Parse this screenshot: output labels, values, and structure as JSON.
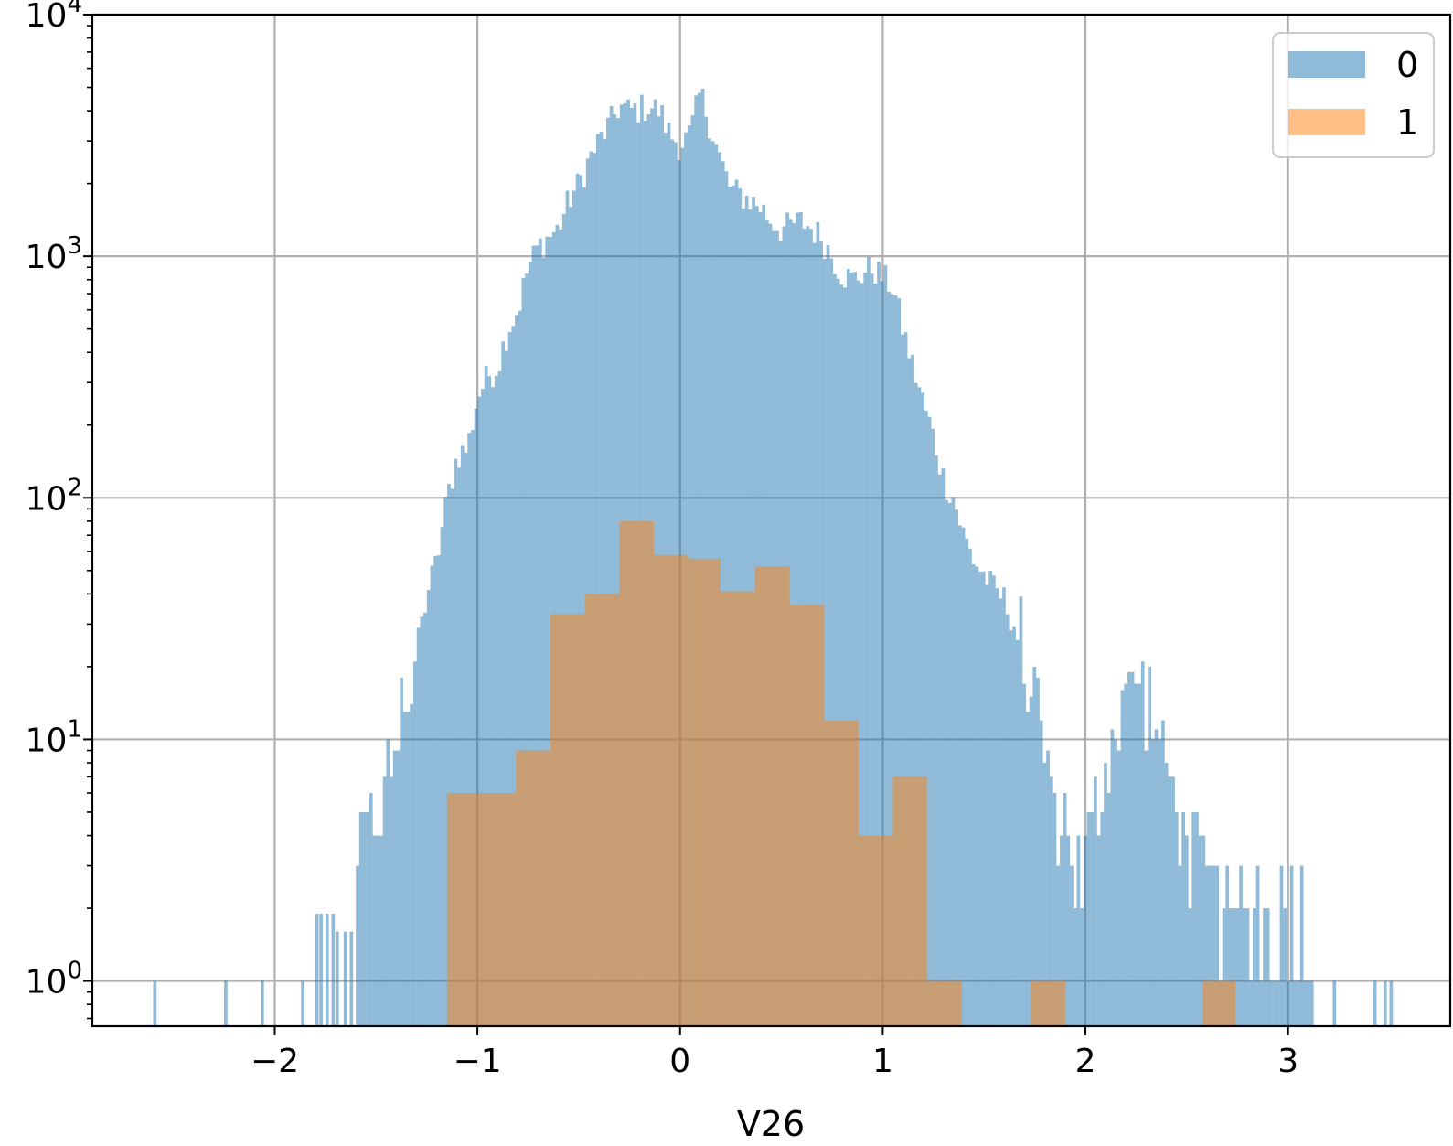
{
  "chart_data": {
    "type": "histogram",
    "xlabel": "V26",
    "ylabel": "",
    "yscale": "log",
    "xlim": [
      -2.9,
      3.8
    ],
    "ylim": [
      0.65,
      10000
    ],
    "grid": true,
    "legend_position": "top-right",
    "x_ticks": [
      {
        "value": -2,
        "label": "−2"
      },
      {
        "value": -1,
        "label": "−1"
      },
      {
        "value": 0,
        "label": "0"
      },
      {
        "value": 1,
        "label": "1"
      },
      {
        "value": 2,
        "label": "2"
      },
      {
        "value": 3,
        "label": "3"
      }
    ],
    "y_ticks": [
      {
        "value": 1,
        "base": "10",
        "exp": "0"
      },
      {
        "value": 10,
        "base": "10",
        "exp": "1"
      },
      {
        "value": 100,
        "base": "10",
        "exp": "2"
      },
      {
        "value": 1000,
        "base": "10",
        "exp": "3"
      },
      {
        "value": 10000,
        "base": "10",
        "exp": "4"
      }
    ],
    "series": [
      {
        "name": "0",
        "color": "#1f77b4",
        "alpha": 0.5,
        "bin_start": -2.6,
        "bin_width": 0.0167,
        "profile": [
          [
            -2.6,
            1
          ],
          [
            -2.25,
            1
          ],
          [
            -2.07,
            1
          ],
          [
            -1.87,
            1
          ],
          [
            -1.8,
            1.5
          ],
          [
            -1.75,
            2
          ],
          [
            -1.7,
            2
          ],
          [
            -1.65,
            4
          ],
          [
            -1.6,
            3
          ],
          [
            -1.55,
            4
          ],
          [
            -1.5,
            4
          ],
          [
            -1.45,
            6
          ],
          [
            -1.4,
            10
          ],
          [
            -1.35,
            14
          ],
          [
            -1.3,
            22
          ],
          [
            -1.25,
            40
          ],
          [
            -1.2,
            55
          ],
          [
            -1.15,
            100
          ],
          [
            -1.1,
            150
          ],
          [
            -1.05,
            160
          ],
          [
            -1.0,
            260
          ],
          [
            -0.95,
            320
          ],
          [
            -0.9,
            350
          ],
          [
            -0.85,
            500
          ],
          [
            -0.8,
            600
          ],
          [
            -0.75,
            900
          ],
          [
            -0.7,
            1100
          ],
          [
            -0.65,
            1200
          ],
          [
            -0.6,
            1300
          ],
          [
            -0.55,
            1700
          ],
          [
            -0.5,
            2000
          ],
          [
            -0.45,
            2500
          ],
          [
            -0.4,
            3000
          ],
          [
            -0.35,
            3500
          ],
          [
            -0.3,
            4200
          ],
          [
            -0.25,
            4000
          ],
          [
            -0.2,
            4100
          ],
          [
            -0.15,
            4200
          ],
          [
            -0.1,
            4000
          ],
          [
            -0.05,
            3200
          ],
          [
            0.0,
            2900
          ],
          [
            0.05,
            3200
          ],
          [
            0.1,
            4800
          ],
          [
            0.15,
            3500
          ],
          [
            0.2,
            2500
          ],
          [
            0.25,
            1900
          ],
          [
            0.3,
            1800
          ],
          [
            0.35,
            1700
          ],
          [
            0.4,
            1600
          ],
          [
            0.45,
            1400
          ],
          [
            0.5,
            1300
          ],
          [
            0.55,
            1350
          ],
          [
            0.6,
            1400
          ],
          [
            0.65,
            1300
          ],
          [
            0.7,
            1200
          ],
          [
            0.75,
            1000
          ],
          [
            0.8,
            850
          ],
          [
            0.85,
            800
          ],
          [
            0.9,
            850
          ],
          [
            0.95,
            900
          ],
          [
            1.0,
            820
          ],
          [
            1.05,
            750
          ],
          [
            1.1,
            500
          ],
          [
            1.15,
            350
          ],
          [
            1.2,
            250
          ],
          [
            1.25,
            180
          ],
          [
            1.3,
            120
          ],
          [
            1.35,
            100
          ],
          [
            1.4,
            70
          ],
          [
            1.45,
            55
          ],
          [
            1.5,
            48
          ],
          [
            1.55,
            42
          ],
          [
            1.6,
            38
          ],
          [
            1.65,
            30
          ],
          [
            1.7,
            20
          ],
          [
            1.75,
            14
          ],
          [
            1.8,
            8
          ],
          [
            1.85,
            5
          ],
          [
            1.9,
            4
          ],
          [
            1.95,
            3
          ],
          [
            2.0,
            3
          ],
          [
            2.05,
            5
          ],
          [
            2.1,
            8
          ],
          [
            2.15,
            12
          ],
          [
            2.2,
            15
          ],
          [
            2.25,
            18
          ],
          [
            2.3,
            15
          ],
          [
            2.35,
            10
          ],
          [
            2.4,
            7
          ],
          [
            2.45,
            5
          ],
          [
            2.5,
            4
          ],
          [
            2.55,
            3
          ],
          [
            2.6,
            2.5
          ],
          [
            2.65,
            2.2
          ],
          [
            2.7,
            2
          ],
          [
            2.75,
            2
          ],
          [
            2.8,
            2
          ],
          [
            2.85,
            2
          ],
          [
            2.9,
            2
          ],
          [
            2.95,
            2
          ],
          [
            3.0,
            2
          ],
          [
            3.05,
            2
          ],
          [
            3.1,
            1.5
          ]
        ],
        "outliers": [
          3.22,
          3.42,
          3.47,
          3.5
        ]
      },
      {
        "name": "1",
        "color": "#ff7f0e",
        "alpha": 0.5,
        "bins": [
          {
            "x0": -1.15,
            "x1": -0.98,
            "count": 6
          },
          {
            "x0": -0.98,
            "x1": -0.81,
            "count": 6
          },
          {
            "x0": -0.81,
            "x1": -0.64,
            "count": 9
          },
          {
            "x0": -0.64,
            "x1": -0.47,
            "count": 33
          },
          {
            "x0": -0.47,
            "x1": -0.3,
            "count": 40
          },
          {
            "x0": -0.3,
            "x1": -0.13,
            "count": 80
          },
          {
            "x0": -0.13,
            "x1": 0.04,
            "count": 58
          },
          {
            "x0": 0.04,
            "x1": 0.2,
            "count": 56
          },
          {
            "x0": 0.2,
            "x1": 0.37,
            "count": 41
          },
          {
            "x0": 0.37,
            "x1": 0.54,
            "count": 52
          },
          {
            "x0": 0.54,
            "x1": 0.71,
            "count": 36
          },
          {
            "x0": 0.71,
            "x1": 0.88,
            "count": 12
          },
          {
            "x0": 0.88,
            "x1": 1.05,
            "count": 4
          },
          {
            "x0": 1.05,
            "x1": 1.22,
            "count": 7
          },
          {
            "x0": 1.22,
            "x1": 1.39,
            "count": 1
          },
          {
            "x0": 1.73,
            "x1": 1.9,
            "count": 1
          },
          {
            "x0": 2.58,
            "x1": 2.74,
            "count": 1
          }
        ]
      }
    ]
  }
}
